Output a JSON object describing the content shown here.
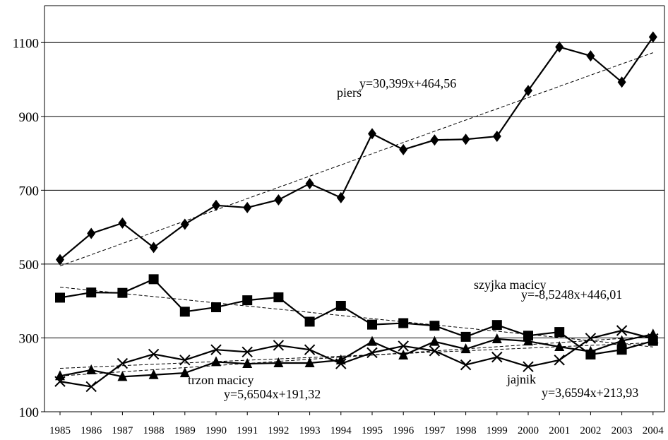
{
  "chart_data": {
    "type": "line",
    "title": "",
    "xlabel": "",
    "ylabel": "",
    "x": [
      "1985",
      "1986",
      "1987",
      "1988",
      "1989",
      "1990",
      "1991",
      "1992",
      "1993",
      "1994",
      "1995",
      "1996",
      "1997",
      "1998",
      "1999",
      "2000",
      "2001",
      "2002",
      "2003",
      "2004"
    ],
    "ylim": [
      100,
      1200
    ],
    "yticks": [
      "100",
      "300",
      "500",
      "700",
      "900",
      "1100"
    ],
    "grid": "horizontal",
    "legend": "none",
    "series": [
      {
        "key": "piers",
        "marker": "diamond",
        "values": [
          512,
          583,
          611,
          545,
          608,
          659,
          653,
          674,
          718,
          680,
          853,
          810,
          836,
          838,
          846,
          970,
          1088,
          1064,
          993,
          1115
        ]
      },
      {
        "key": "szyjka",
        "marker": "square",
        "values": [
          409,
          423,
          422,
          459,
          371,
          383,
          402,
          410,
          344,
          387,
          336,
          340,
          333,
          303,
          335,
          306,
          316,
          255,
          268,
          292
        ]
      },
      {
        "key": "trzon",
        "marker": "triangle",
        "values": [
          197,
          213,
          195,
          200,
          205,
          235,
          230,
          232,
          232,
          240,
          290,
          253,
          290,
          270,
          297,
          291,
          276,
          263,
          292,
          310
        ]
      },
      {
        "key": "jajnik",
        "marker": "x",
        "values": [
          182,
          168,
          231,
          256,
          240,
          268,
          262,
          280,
          268,
          230,
          260,
          278,
          265,
          227,
          248,
          222,
          240,
          299,
          320,
          298
        ]
      }
    ],
    "trendlines": [
      {
        "series": "piers",
        "slope": 30.399,
        "intercept": 464.56
      },
      {
        "series": "szyjka",
        "slope": -8.5248,
        "intercept": 446.01
      },
      {
        "series": "trzon",
        "slope": 5.6504,
        "intercept": 191.32
      },
      {
        "series": "jajnik",
        "slope": 3.6594,
        "intercept": 213.93
      }
    ],
    "annotations": {
      "piers_label": "piers",
      "piers_eq": "y=30,399x+464,56",
      "szyjka_label": "szyjka macicy",
      "szyjka_eq": "y=-8,5248x+446,01",
      "trzon_label": "trzon macicy",
      "trzon_eq": "y=5,6504x+191,32",
      "jajnik_label": "jajnik",
      "jajnik_eq": "y=3,6594x+213,93"
    }
  }
}
